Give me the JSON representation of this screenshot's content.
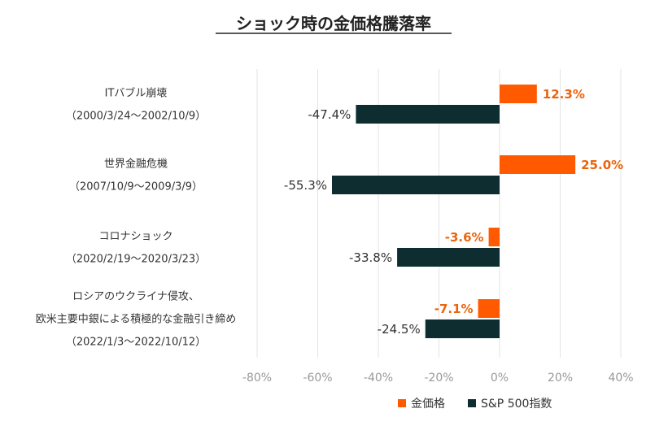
{
  "chart_data": {
    "type": "bar",
    "orientation": "horizontal",
    "title": "ショック時の金価格騰落率",
    "categories": [
      [
        "ITバブル崩壊",
        "（2000/3/24～2002/10/9）"
      ],
      [
        "世界金融危機",
        "（2007/10/9～2009/3/9）"
      ],
      [
        "コロナショック",
        "（2020/2/19～2020/3/23）"
      ],
      [
        "ロシアのウクライナ侵攻、",
        "欧米主要中銀による積極的な金融引き締め",
        "（2022/1/3～2022/10/12）"
      ]
    ],
    "series": [
      {
        "name": "金価格",
        "color": "#ff5a00",
        "values": [
          12.3,
          25.0,
          -3.6,
          -7.1
        ],
        "labels": [
          "12.3%",
          "25.0%",
          "-3.6%",
          "-7.1%"
        ]
      },
      {
        "name": "S&P 500指数",
        "color": "#0d2d30",
        "values": [
          -47.4,
          -55.3,
          -33.8,
          -24.5
        ],
        "labels": [
          "-47.4%",
          "-55.3%",
          "-33.8%",
          "-24.5%"
        ]
      }
    ],
    "xlim": [
      -80,
      40
    ],
    "xticks": [
      -80,
      -60,
      -40,
      -20,
      0,
      20,
      40
    ],
    "xtick_labels": [
      "-80%",
      "-60%",
      "-40%",
      "-20%",
      "0%",
      "20%",
      "40%"
    ],
    "grid": true,
    "legend_position": "bottom"
  }
}
